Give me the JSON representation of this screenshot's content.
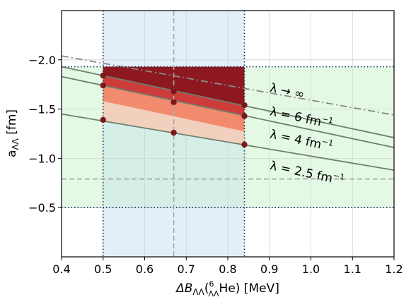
{
  "chart_data": {
    "type": "line",
    "title": "",
    "xlabel_main": "ΔB",
    "xlabel_sub": "ΛΛ",
    "xlabel_paren_open": "(",
    "xlabel_sup": "6",
    "xlabel_sub2": "ΛΛ",
    "xlabel_he": "He) [MeV]",
    "ylabel_main": "a",
    "ylabel_sub": "ΛΛ",
    "ylabel_unit": " [fm]",
    "xlim": [
      0.4,
      1.2
    ],
    "ylim": [
      -0.0,
      -2.5
    ],
    "y_axis_inverted": true,
    "grid": true,
    "xticks": [
      0.4,
      0.5,
      0.6,
      0.7,
      0.8,
      0.9,
      1.0,
      1.1,
      1.2
    ],
    "xtick_labels": [
      "0.4",
      "0.5",
      "0.6",
      "0.7",
      "0.8",
      "0.9",
      "1.0",
      "1.1",
      "1.2"
    ],
    "yticks": [
      -2.0,
      -1.5,
      -1.0,
      -0.5
    ],
    "ytick_labels": [
      "−2.0",
      "−1.5",
      "−1.0",
      "−0.5"
    ],
    "series": [
      {
        "name": "λ → ∞",
        "style": "dashdot",
        "color": "#888888",
        "x": [
          0.4,
          1.2
        ],
        "y": [
          -2.04,
          -1.44
        ]
      },
      {
        "name": "λ = 6 fm⁻¹",
        "style": "solid",
        "color": "#6e7f6e",
        "x": [
          0.4,
          1.2
        ],
        "y": [
          -1.93,
          -1.21
        ]
      },
      {
        "name": "λ = 4 fm⁻¹",
        "style": "solid",
        "color": "#6e7f6e",
        "x": [
          0.4,
          1.2
        ],
        "y": [
          -1.83,
          -1.11
        ]
      },
      {
        "name": "λ = 2.5 fm⁻¹",
        "style": "solid",
        "color": "#6e7f6e",
        "x": [
          0.4,
          1.2
        ],
        "y": [
          -1.45,
          -0.88
        ]
      }
    ],
    "markers": {
      "color": "#7a1a1a",
      "points": [
        [
          0.5,
          -1.84
        ],
        [
          0.5,
          -1.74
        ],
        [
          0.5,
          -1.39
        ],
        [
          0.67,
          -1.68
        ],
        [
          0.67,
          -1.57
        ],
        [
          0.67,
          -1.26
        ],
        [
          0.84,
          -1.54
        ],
        [
          0.84,
          -1.43
        ],
        [
          0.84,
          -1.14
        ]
      ]
    },
    "bands": {
      "x_range": [
        0.5,
        0.84
      ],
      "x_center": 0.67,
      "y_range": [
        -1.93,
        -0.5
      ],
      "y_center": -0.79,
      "top_fill_y": -1.93
    },
    "labels": [
      {
        "text_main": "λ → ∞",
        "sup": "",
        "x": 0.9,
        "y": -1.68
      },
      {
        "text_main": "λ = 6 fm",
        "sup": "−1",
        "x": 0.9,
        "y": -1.44
      },
      {
        "text_main": "λ = 4 fm",
        "sup": "−1",
        "x": 0.9,
        "y": -1.21
      },
      {
        "text_main": "λ = 2.5 fm",
        "sup": "−1",
        "x": 0.9,
        "y": -0.89
      }
    ],
    "colors": {
      "green_band": "#e4f9e4",
      "blue_band": "#e3eff8",
      "teal_overlap": "#d5efe8",
      "region_dark": "#8e1820",
      "region_red": "#cd3c3a",
      "region_salmon": "#f28b6e",
      "region_peach": "#f1d0bd",
      "dotted_line": "#1f2a5a",
      "dashed_line": "#a6a6a6"
    }
  }
}
